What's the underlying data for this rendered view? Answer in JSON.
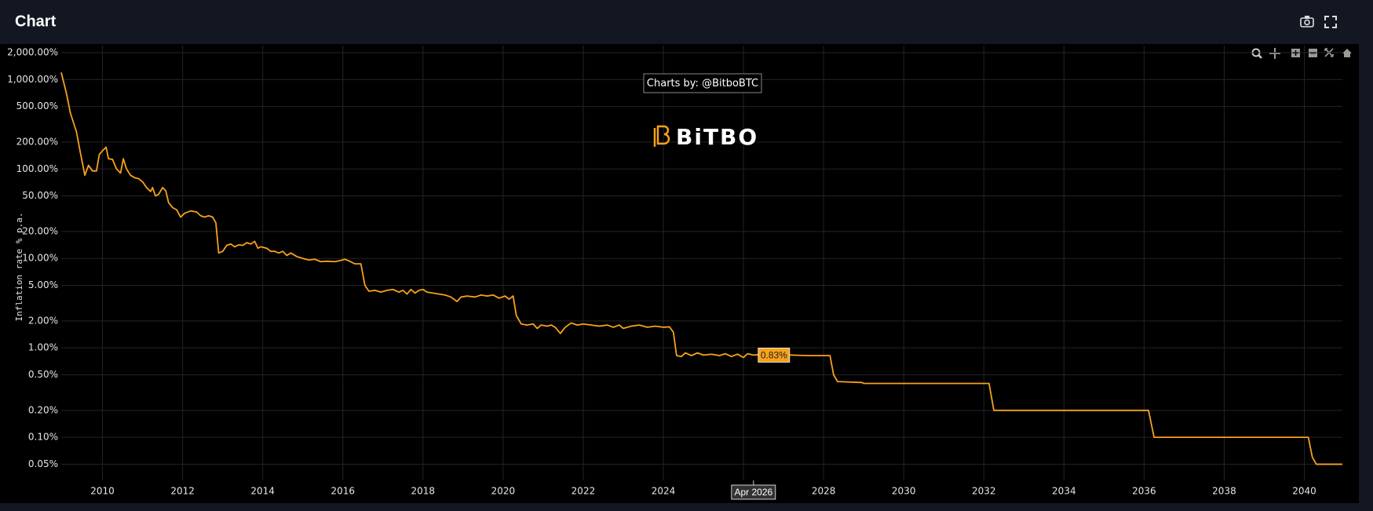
{
  "header": {
    "title": "Chart"
  },
  "chart_data": {
    "type": "line",
    "credit": "Charts by: @BitboBTC",
    "logo": "BiTBO",
    "y_label": "Inflation rate % p.a.",
    "log_y": true,
    "grid": true,
    "color": "#f7a21b",
    "xlim": [
      2008.97,
      2040.95
    ],
    "xticks": [
      2010,
      2012,
      2014,
      2016,
      2018,
      2020,
      2022,
      2024,
      2026,
      2028,
      2030,
      2032,
      2034,
      2036,
      2038,
      2040
    ],
    "ylim": [
      0.033,
      2400
    ],
    "yticks": [
      {
        "value": 2000,
        "label": "2,000.00%"
      },
      {
        "value": 1000,
        "label": "1,000.00%"
      },
      {
        "value": 500,
        "label": "500.00%"
      },
      {
        "value": 200,
        "label": "200.00%"
      },
      {
        "value": 100,
        "label": "100.00%"
      },
      {
        "value": 50,
        "label": "50.00%"
      },
      {
        "value": 20,
        "label": "20.00%"
      },
      {
        "value": 10,
        "label": "10.00%"
      },
      {
        "value": 5,
        "label": "5.00%"
      },
      {
        "value": 2,
        "label": "2.00%"
      },
      {
        "value": 1,
        "label": "1.00%"
      },
      {
        "value": 0.5,
        "label": "0.50%"
      },
      {
        "value": 0.2,
        "label": "0.20%"
      },
      {
        "value": 0.1,
        "label": "0.10%"
      },
      {
        "value": 0.05,
        "label": "0.05%"
      }
    ],
    "hover": {
      "x": 2026.25,
      "value": 0.83,
      "label": "0.83%",
      "x_label": "Apr 2026"
    },
    "x": [
      2008.97,
      2009.1,
      2009.2,
      2009.35,
      2009.45,
      2009.56,
      2009.65,
      2009.75,
      2009.85,
      2009.92,
      2010.0,
      2010.09,
      2010.15,
      2010.25,
      2010.35,
      2010.45,
      2010.52,
      2010.6,
      2010.7,
      2010.8,
      2010.9,
      2011.0,
      2011.1,
      2011.2,
      2011.25,
      2011.32,
      2011.4,
      2011.5,
      2011.58,
      2011.65,
      2011.75,
      2011.85,
      2011.95,
      2012.05,
      2012.2,
      2012.35,
      2012.45,
      2012.55,
      2012.65,
      2012.75,
      2012.83,
      2012.9,
      2013.0,
      2013.1,
      2013.2,
      2013.3,
      2013.4,
      2013.5,
      2013.6,
      2013.7,
      2013.8,
      2013.88,
      2013.95,
      2014.1,
      2014.2,
      2014.3,
      2014.4,
      2014.5,
      2014.6,
      2014.7,
      2014.85,
      2015.0,
      2015.15,
      2015.3,
      2015.45,
      2015.6,
      2015.8,
      2015.95,
      2016.05,
      2016.15,
      2016.3,
      2016.45,
      2016.55,
      2016.65,
      2016.8,
      2016.95,
      2017.1,
      2017.25,
      2017.4,
      2017.5,
      2017.6,
      2017.7,
      2017.8,
      2017.9,
      2018.0,
      2018.1,
      2018.25,
      2018.4,
      2018.55,
      2018.7,
      2018.85,
      2018.95,
      2019.1,
      2019.3,
      2019.45,
      2019.6,
      2019.75,
      2019.9,
      2020.05,
      2020.15,
      2020.25,
      2020.33,
      2020.45,
      2020.6,
      2020.75,
      2020.85,
      2020.95,
      2021.1,
      2021.2,
      2021.3,
      2021.43,
      2021.55,
      2021.7,
      2021.85,
      2022.0,
      2022.2,
      2022.4,
      2022.6,
      2022.75,
      2022.9,
      2023.0,
      2023.2,
      2023.4,
      2023.6,
      2023.8,
      2024.0,
      2024.15,
      2024.25,
      2024.33,
      2024.45,
      2024.55,
      2024.7,
      2024.85,
      2025.0,
      2025.2,
      2025.4,
      2025.55,
      2025.7,
      2025.85,
      2026.0,
      2026.1,
      2026.25,
      2026.5,
      2026.8,
      2027.2,
      2027.6,
      2028.0,
      2028.16,
      2028.25,
      2028.35,
      2028.96,
      2029.0,
      2032.13,
      2032.25,
      2036.11,
      2036.25,
      2040.1,
      2040.2,
      2040.3,
      2040.95
    ],
    "values": [
      1200,
      700,
      420,
      260,
      150,
      85,
      110,
      95,
      95,
      145,
      160,
      175,
      130,
      128,
      100,
      90,
      130,
      100,
      85,
      80,
      78,
      72,
      62,
      56,
      62,
      50,
      52,
      62,
      57,
      42,
      37,
      35,
      29,
      32,
      34,
      33,
      30,
      29,
      30,
      29,
      25,
      11.5,
      12,
      14,
      14.5,
      13.5,
      14.2,
      14,
      15,
      14.5,
      15.5,
      13,
      13.5,
      13,
      12,
      12,
      11.5,
      12,
      10.8,
      11.5,
      10.5,
      10,
      9.6,
      9.8,
      9.2,
      9.3,
      9.2,
      9.5,
      9.8,
      9.4,
      8.7,
      8.7,
      5,
      4.3,
      4.4,
      4.2,
      4.4,
      4.5,
      4.2,
      4.4,
      4.0,
      4.5,
      4.1,
      4.4,
      4.5,
      4.2,
      4.1,
      4.0,
      3.9,
      3.7,
      3.3,
      3.7,
      3.8,
      3.7,
      3.9,
      3.8,
      3.9,
      3.6,
      3.8,
      3.5,
      3.8,
      2.3,
      1.85,
      1.8,
      1.85,
      1.65,
      1.8,
      1.75,
      1.8,
      1.7,
      1.45,
      1.7,
      1.9,
      1.8,
      1.85,
      1.8,
      1.75,
      1.8,
      1.7,
      1.8,
      1.65,
      1.75,
      1.8,
      1.7,
      1.75,
      1.7,
      1.72,
      1.5,
      0.82,
      0.8,
      0.88,
      0.82,
      0.88,
      0.83,
      0.85,
      0.82,
      0.86,
      0.8,
      0.85,
      0.78,
      0.86,
      0.83,
      0.85,
      0.84,
      0.83,
      0.82,
      0.82,
      0.82,
      0.5,
      0.42,
      0.41,
      0.4,
      0.4,
      0.2,
      0.2,
      0.1,
      0.1,
      0.06,
      0.05,
      0.05
    ]
  }
}
